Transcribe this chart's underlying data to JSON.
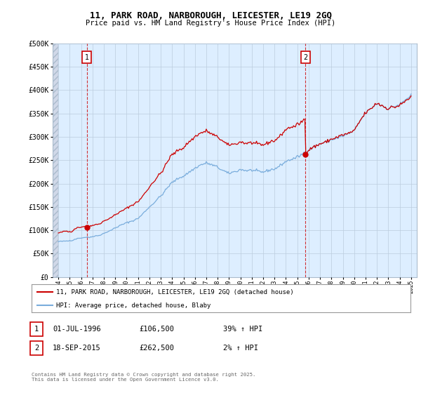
{
  "title_line1": "11, PARK ROAD, NARBOROUGH, LEICESTER, LE19 2GQ",
  "title_line2": "Price paid vs. HM Land Registry's House Price Index (HPI)",
  "legend_line1": "11, PARK ROAD, NARBOROUGH, LEICESTER, LE19 2GQ (detached house)",
  "legend_line2": "HPI: Average price, detached house, Blaby",
  "annotation1_date": "01-JUL-1996",
  "annotation1_price": "£106,500",
  "annotation1_hpi": "39% ↑ HPI",
  "annotation2_date": "18-SEP-2015",
  "annotation2_price": "£262,500",
  "annotation2_hpi": "2% ↑ HPI",
  "footnote": "Contains HM Land Registry data © Crown copyright and database right 2025.\nThis data is licensed under the Open Government Licence v3.0.",
  "sale_color": "#cc0000",
  "hpi_color": "#7aaddc",
  "dashed_color": "#cc0000",
  "chart_bg": "#ddeeff",
  "hatch_bg": "#e8eef5",
  "background_color": "#ffffff",
  "grid_color": "#bbccdd",
  "ylim": [
    0,
    500000
  ],
  "yticks": [
    0,
    50000,
    100000,
    150000,
    200000,
    250000,
    300000,
    350000,
    400000,
    450000,
    500000
  ],
  "sale1_x": 1996.5,
  "sale1_y": 106500,
  "sale2_x": 2015.72,
  "sale2_y": 262500,
  "xmin": 1993.5,
  "xmax": 2025.5
}
